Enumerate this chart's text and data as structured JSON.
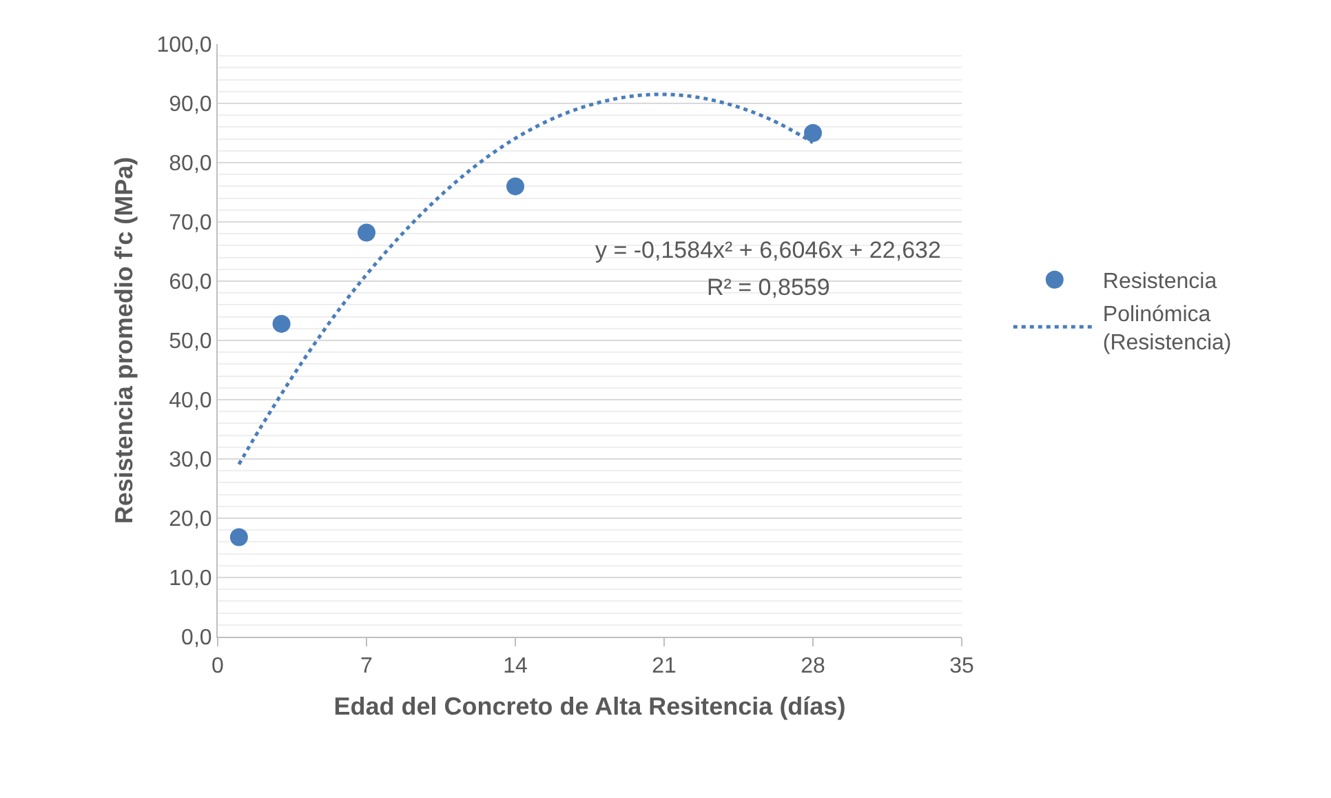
{
  "chart_data": {
    "type": "scatter",
    "xlabel": "Edad del Concreto de Alta Resitencia (días)",
    "ylabel": "Resistencia promedio f'c (MPa)",
    "annotations": [
      "y = -0,1584x² + 6,6046x + 22,632",
      "R² = 0,8559"
    ],
    "series": [
      {
        "name": "Resistencia",
        "color": "#4a7ebb",
        "marker": "circle",
        "x": [
          1,
          3,
          7,
          14,
          28
        ],
        "values": [
          16.8,
          52.8,
          68.2,
          76.0,
          85.0
        ]
      },
      {
        "name": "Polinómica (Resistencia)",
        "type": "line",
        "color": "#4a7ebb",
        "marker": "none",
        "line_style": "dotted",
        "x": [
          1,
          2,
          4,
          6,
          8,
          10,
          12,
          14,
          16,
          18,
          20,
          22,
          24,
          26,
          28
        ],
        "values": [
          29.1,
          35.2,
          46.5,
          56.6,
          65.3,
          72.8,
          79.1,
          84.1,
          87.8,
          90.2,
          91.4,
          91.3,
          89.9,
          87.3,
          83.4
        ]
      }
    ],
    "xlim": [
      0,
      35
    ],
    "xticks": [
      0,
      7,
      14,
      21,
      28,
      35
    ],
    "ylim": [
      0,
      100
    ],
    "yticks": [
      {
        "value": 0,
        "label": "0,0"
      },
      {
        "value": 10,
        "label": "10,0"
      },
      {
        "value": 20,
        "label": "20,0"
      },
      {
        "value": 30,
        "label": "30,0"
      },
      {
        "value": 40,
        "label": "40,0"
      },
      {
        "value": 50,
        "label": "50,0"
      },
      {
        "value": 60,
        "label": "60,0"
      },
      {
        "value": 70,
        "label": "70,0"
      },
      {
        "value": 80,
        "label": "80,0"
      },
      {
        "value": 90,
        "label": "90,0"
      },
      {
        "value": 100,
        "label": "100,0"
      }
    ],
    "grid": "y",
    "legend": "right"
  }
}
